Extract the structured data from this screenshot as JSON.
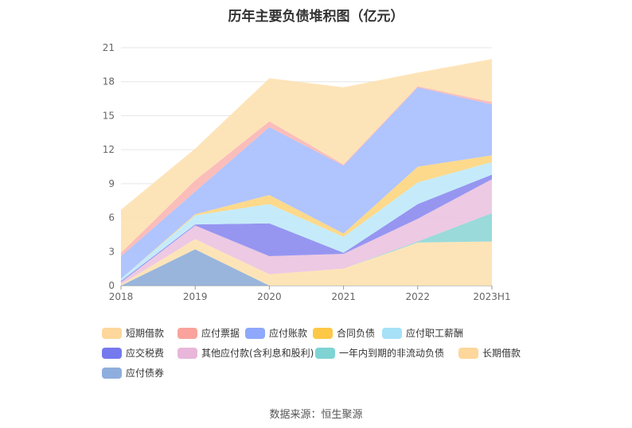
{
  "chart_data": {
    "type": "area",
    "title": "历年主要负债堆积图（亿元）",
    "categories": [
      "2018",
      "2019",
      "2020",
      "2021",
      "2022",
      "2023H1"
    ],
    "ylim": [
      0,
      21
    ],
    "yticks": [
      0,
      3,
      6,
      9,
      12,
      15,
      18,
      21
    ],
    "stacked": true,
    "grid": true,
    "legend_position": "bottom",
    "series": [
      {
        "name": "应付债券",
        "color": "#8eadd8",
        "values": [
          0,
          3.2,
          0,
          0,
          0,
          0
        ]
      },
      {
        "name": "长期借款",
        "color": "#fde1b0",
        "values": [
          0.1,
          0.9,
          1.0,
          1.5,
          3.8,
          3.9
        ]
      },
      {
        "name": "一年内到期的非流动负债",
        "color": "#8fd6d6",
        "values": [
          0,
          0,
          0,
          0,
          0.1,
          2.5
        ]
      },
      {
        "name": "其他应付款(含利息和股利)",
        "color": "#ebc3e0",
        "values": [
          0.2,
          1.2,
          1.6,
          1.3,
          2.0,
          3.0
        ]
      },
      {
        "name": "应交税费",
        "color": "#8b8bef",
        "values": [
          0.1,
          0.1,
          2.9,
          0.1,
          1.3,
          0.4
        ]
      },
      {
        "name": "应付职工薪酬",
        "color": "#bfe9f9",
        "values": [
          0.2,
          0.8,
          1.7,
          1.4,
          1.9,
          1.1
        ]
      },
      {
        "name": "合同负债",
        "color": "#fdd57e",
        "values": [
          0,
          0.1,
          0.8,
          0.3,
          1.4,
          0.6
        ]
      },
      {
        "name": "应付账款",
        "color": "#a7befd",
        "values": [
          2.0,
          2.0,
          6.0,
          6.0,
          7.0,
          4.5
        ]
      },
      {
        "name": "应付票据",
        "color": "#fbb6b2",
        "values": [
          0.3,
          1.0,
          0.5,
          0.1,
          0.1,
          0.2
        ]
      },
      {
        "name": "短期借款",
        "color": "#fde1b0",
        "values": [
          3.8,
          2.8,
          3.8,
          6.8,
          1.2,
          3.8
        ]
      }
    ]
  },
  "legend": [
    {
      "label": "短期借款",
      "color": "#fdd79b"
    },
    {
      "label": "应付票据",
      "color": "#f9a39c"
    },
    {
      "label": "应付账款",
      "color": "#8fa8fb"
    },
    {
      "label": "合同负债",
      "color": "#fdc846"
    },
    {
      "label": "应付职工薪酬",
      "color": "#a6e1f8"
    },
    {
      "label": "应交税费",
      "color": "#7579ee"
    },
    {
      "label": "其他应付款(含利息和股利)",
      "color": "#e8b6d9"
    },
    {
      "label": "一年内到期的非流动负债",
      "color": "#7fd3d3"
    },
    {
      "label": "长期借款",
      "color": "#fdd79b"
    },
    {
      "label": "应付债券",
      "color": "#8eaedd"
    }
  ],
  "source": "数据来源：恒生聚源"
}
